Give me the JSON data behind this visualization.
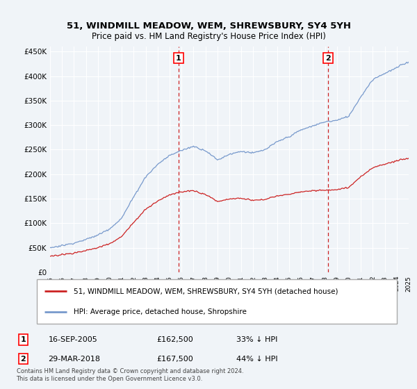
{
  "title": "51, WINDMILL MEADOW, WEM, SHREWSBURY, SY4 5YH",
  "subtitle": "Price paid vs. HM Land Registry's House Price Index (HPI)",
  "bg_color": "#f0f4f8",
  "plot_bg_color": "#f0f4f8",
  "grid_color": "#cccccc",
  "hpi_color": "#7799cc",
  "price_color": "#cc2222",
  "legend_label_price": "51, WINDMILL MEADOW, WEM, SHREWSBURY, SY4 5YH (detached house)",
  "legend_label_hpi": "HPI: Average price, detached house, Shropshire",
  "table_row1": [
    "1",
    "16-SEP-2005",
    "£162,500",
    "33% ↓ HPI"
  ],
  "table_row2": [
    "2",
    "29-MAR-2018",
    "£167,500",
    "44% ↓ HPI"
  ],
  "footnote": "Contains HM Land Registry data © Crown copyright and database right 2024.\nThis data is licensed under the Open Government Licence v3.0.",
  "ylim": [
    0,
    460000
  ],
  "yticks": [
    0,
    50000,
    100000,
    150000,
    200000,
    250000,
    300000,
    350000,
    400000,
    450000
  ],
  "year_start": 1995,
  "year_end": 2025,
  "sale1_x": 2005.75,
  "sale2_x": 2018.25,
  "sale1_price": 162500,
  "sale2_price": 167500
}
